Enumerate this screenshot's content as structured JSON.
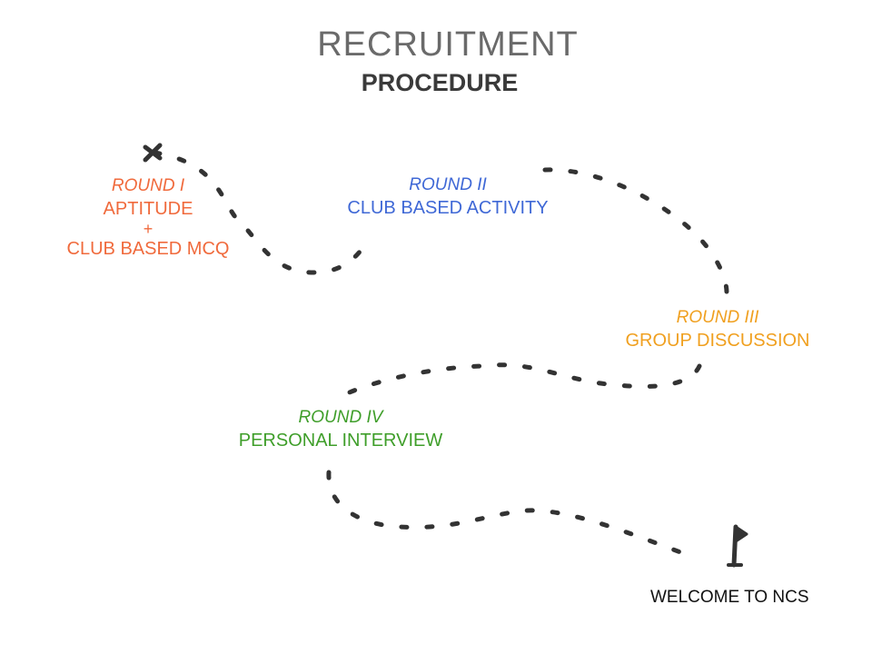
{
  "title": "RECRUITMENT",
  "subtitle": "PROCEDURE",
  "colors": {
    "title": "#6a6a6a",
    "subtitle": "#3a3a3a",
    "path": "#333333",
    "round1": "#f06a3c",
    "round2": "#3f68d6",
    "round3": "#f0a020",
    "round4": "#3f9e2a",
    "welcome": "#111111"
  },
  "rounds": [
    {
      "label": "ROUND I",
      "lines": [
        "APTITUDE",
        "+",
        "CLUB BASED MCQ"
      ]
    },
    {
      "label": "ROUND II",
      "lines": [
        "CLUB BASED ACTIVITY"
      ]
    },
    {
      "label": "ROUND III",
      "lines": [
        "GROUP DISCUSSION"
      ]
    },
    {
      "label": "ROUND IV",
      "lines": [
        "PERSONAL INTERVIEW"
      ]
    }
  ],
  "start_marker": "x-mark-icon",
  "end_marker": "flag-icon",
  "ending": "WELCOME TO NCS"
}
